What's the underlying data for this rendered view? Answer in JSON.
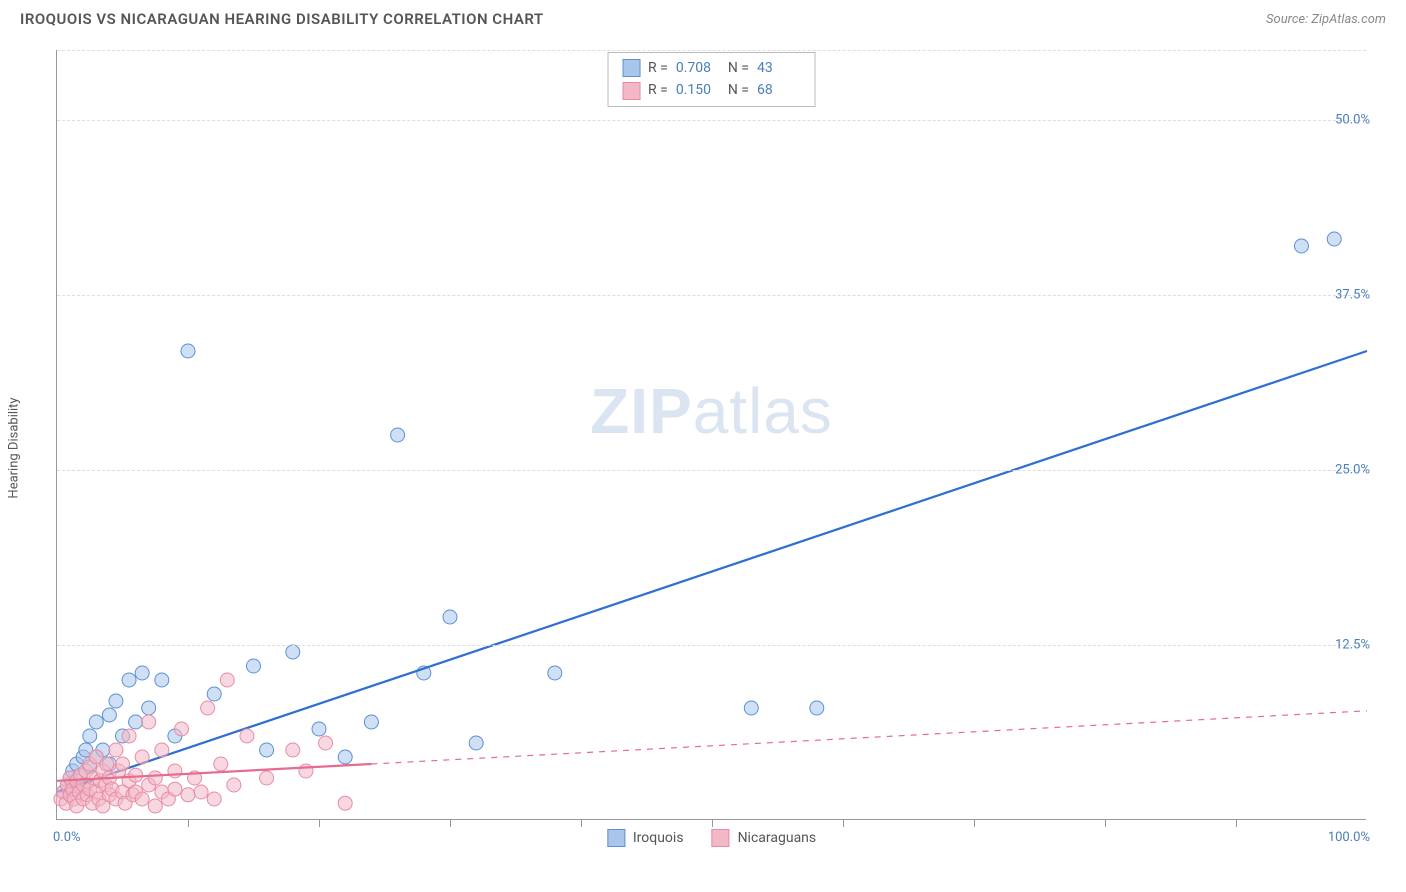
{
  "header": {
    "title": "IROQUOIS VS NICARAGUAN HEARING DISABILITY CORRELATION CHART",
    "source_label": "Source: ZipAtlas.com"
  },
  "chart": {
    "type": "scatter",
    "ylabel": "Hearing Disability",
    "watermark": "ZIPatlas",
    "background_color": "#ffffff",
    "grid_color": "#dddddd",
    "axis_color": "#999999",
    "label_color": "#4a7ebb",
    "title_fontsize": 15,
    "label_fontsize": 13,
    "xlim": [
      0,
      100
    ],
    "ylim": [
      0,
      55
    ],
    "x_axis": {
      "min_label": "0.0%",
      "max_label": "100.0%",
      "tick_positions": [
        10,
        20,
        30,
        40,
        50,
        60,
        70,
        80,
        90
      ]
    },
    "y_axis": {
      "ticks": [
        {
          "v": 12.5,
          "label": "12.5%"
        },
        {
          "v": 25.0,
          "label": "25.0%"
        },
        {
          "v": 37.5,
          "label": "37.5%"
        },
        {
          "v": 50.0,
          "label": "50.0%"
        }
      ]
    },
    "marker_radius": 7,
    "marker_opacity": 0.55,
    "line_width_solid": 2.2,
    "line_width_dashed": 1.2,
    "series": [
      {
        "name": "Iroquois",
        "fill_color": "#a8c6ec",
        "stroke_color": "#5b8fd6",
        "line_color": "#2f6fd0",
        "line_style": "solid",
        "trend": {
          "x1": 0,
          "y1": 2.0,
          "x2": 100,
          "y2": 33.5
        },
        "trend_dashed_ext": null,
        "stats": {
          "R_label": "R =",
          "R": "0.708",
          "N_label": "N =",
          "N": "43"
        },
        "points": [
          {
            "x": 0.5,
            "y": 2.0
          },
          {
            "x": 0.8,
            "y": 2.5
          },
          {
            "x": 1.0,
            "y": 3.0
          },
          {
            "x": 1.0,
            "y": 1.8
          },
          {
            "x": 1.2,
            "y": 3.5
          },
          {
            "x": 1.5,
            "y": 2.2
          },
          {
            "x": 1.5,
            "y": 4.0
          },
          {
            "x": 1.8,
            "y": 3.2
          },
          {
            "x": 2.0,
            "y": 4.5
          },
          {
            "x": 2.0,
            "y": 2.5
          },
          {
            "x": 2.2,
            "y": 5.0
          },
          {
            "x": 2.5,
            "y": 3.8
          },
          {
            "x": 2.5,
            "y": 6.0
          },
          {
            "x": 3.0,
            "y": 4.5
          },
          {
            "x": 3.0,
            "y": 7.0
          },
          {
            "x": 3.5,
            "y": 5.0
          },
          {
            "x": 4.0,
            "y": 7.5
          },
          {
            "x": 4.0,
            "y": 4.0
          },
          {
            "x": 4.5,
            "y": 8.5
          },
          {
            "x": 5.0,
            "y": 6.0
          },
          {
            "x": 5.5,
            "y": 10.0
          },
          {
            "x": 6.0,
            "y": 7.0
          },
          {
            "x": 6.5,
            "y": 10.5
          },
          {
            "x": 7.0,
            "y": 8.0
          },
          {
            "x": 8.0,
            "y": 10.0
          },
          {
            "x": 9.0,
            "y": 6.0
          },
          {
            "x": 10.0,
            "y": 33.5
          },
          {
            "x": 12.0,
            "y": 9.0
          },
          {
            "x": 15.0,
            "y": 11.0
          },
          {
            "x": 16.0,
            "y": 5.0
          },
          {
            "x": 18.0,
            "y": 12.0
          },
          {
            "x": 20.0,
            "y": 6.5
          },
          {
            "x": 22.0,
            "y": 4.5
          },
          {
            "x": 24.0,
            "y": 7.0
          },
          {
            "x": 26.0,
            "y": 27.5
          },
          {
            "x": 28.0,
            "y": 10.5
          },
          {
            "x": 30.0,
            "y": 14.5
          },
          {
            "x": 32.0,
            "y": 5.5
          },
          {
            "x": 38.0,
            "y": 10.5
          },
          {
            "x": 53.0,
            "y": 8.0
          },
          {
            "x": 58.0,
            "y": 8.0
          },
          {
            "x": 95.0,
            "y": 41.0
          },
          {
            "x": 97.5,
            "y": 41.5
          }
        ]
      },
      {
        "name": "Nicaraguans",
        "fill_color": "#f3b8c6",
        "stroke_color": "#e88ba3",
        "line_color": "#e66b8f",
        "line_style": "dashed-ext",
        "trend": {
          "x1": 0,
          "y1": 2.8,
          "x2": 24,
          "y2": 4.0
        },
        "trend_dashed_ext": {
          "x1": 24,
          "y1": 4.0,
          "x2": 100,
          "y2": 7.8
        },
        "stats": {
          "R_label": "R =",
          "R": "0.150",
          "N_label": "N =",
          "N": "68"
        },
        "points": [
          {
            "x": 0.3,
            "y": 1.5
          },
          {
            "x": 0.5,
            "y": 2.0
          },
          {
            "x": 0.7,
            "y": 1.2
          },
          {
            "x": 0.8,
            "y": 2.5
          },
          {
            "x": 1.0,
            "y": 1.8
          },
          {
            "x": 1.0,
            "y": 3.0
          },
          {
            "x": 1.2,
            "y": 2.2
          },
          {
            "x": 1.3,
            "y": 1.5
          },
          {
            "x": 1.5,
            "y": 2.8
          },
          {
            "x": 1.5,
            "y": 1.0
          },
          {
            "x": 1.7,
            "y": 2.0
          },
          {
            "x": 1.8,
            "y": 3.2
          },
          {
            "x": 2.0,
            "y": 1.5
          },
          {
            "x": 2.0,
            "y": 2.5
          },
          {
            "x": 2.2,
            "y": 3.5
          },
          {
            "x": 2.3,
            "y": 1.8
          },
          {
            "x": 2.5,
            "y": 2.2
          },
          {
            "x": 2.5,
            "y": 4.0
          },
          {
            "x": 2.7,
            "y": 1.2
          },
          {
            "x": 2.8,
            "y": 3.0
          },
          {
            "x": 3.0,
            "y": 2.0
          },
          {
            "x": 3.0,
            "y": 4.5
          },
          {
            "x": 3.2,
            "y": 1.5
          },
          {
            "x": 3.3,
            "y": 2.8
          },
          {
            "x": 3.5,
            "y": 3.5
          },
          {
            "x": 3.5,
            "y": 1.0
          },
          {
            "x": 3.7,
            "y": 2.5
          },
          {
            "x": 3.8,
            "y": 4.0
          },
          {
            "x": 4.0,
            "y": 1.8
          },
          {
            "x": 4.0,
            "y": 3.0
          },
          {
            "x": 4.2,
            "y": 2.2
          },
          {
            "x": 4.5,
            "y": 5.0
          },
          {
            "x": 4.5,
            "y": 1.5
          },
          {
            "x": 4.7,
            "y": 3.5
          },
          {
            "x": 5.0,
            "y": 2.0
          },
          {
            "x": 5.0,
            "y": 4.0
          },
          {
            "x": 5.2,
            "y": 1.2
          },
          {
            "x": 5.5,
            "y": 2.8
          },
          {
            "x": 5.5,
            "y": 6.0
          },
          {
            "x": 5.8,
            "y": 1.8
          },
          {
            "x": 6.0,
            "y": 3.2
          },
          {
            "x": 6.0,
            "y": 2.0
          },
          {
            "x": 6.5,
            "y": 4.5
          },
          {
            "x": 6.5,
            "y": 1.5
          },
          {
            "x": 7.0,
            "y": 2.5
          },
          {
            "x": 7.0,
            "y": 7.0
          },
          {
            "x": 7.5,
            "y": 1.0
          },
          {
            "x": 7.5,
            "y": 3.0
          },
          {
            "x": 8.0,
            "y": 2.0
          },
          {
            "x": 8.0,
            "y": 5.0
          },
          {
            "x": 8.5,
            "y": 1.5
          },
          {
            "x": 9.0,
            "y": 3.5
          },
          {
            "x": 9.0,
            "y": 2.2
          },
          {
            "x": 9.5,
            "y": 6.5
          },
          {
            "x": 10.0,
            "y": 1.8
          },
          {
            "x": 10.5,
            "y": 3.0
          },
          {
            "x": 11.0,
            "y": 2.0
          },
          {
            "x": 11.5,
            "y": 8.0
          },
          {
            "x": 12.0,
            "y": 1.5
          },
          {
            "x": 12.5,
            "y": 4.0
          },
          {
            "x": 13.0,
            "y": 10.0
          },
          {
            "x": 13.5,
            "y": 2.5
          },
          {
            "x": 14.5,
            "y": 6.0
          },
          {
            "x": 16.0,
            "y": 3.0
          },
          {
            "x": 18.0,
            "y": 5.0
          },
          {
            "x": 19.0,
            "y": 3.5
          },
          {
            "x": 20.5,
            "y": 5.5
          },
          {
            "x": 22.0,
            "y": 1.2
          }
        ]
      }
    ],
    "bottom_legend": [
      {
        "label": "Iroquois",
        "fill": "#a8c6ec",
        "stroke": "#5b8fd6"
      },
      {
        "label": "Nicaraguans",
        "fill": "#f3b8c6",
        "stroke": "#e88ba3"
      }
    ]
  }
}
